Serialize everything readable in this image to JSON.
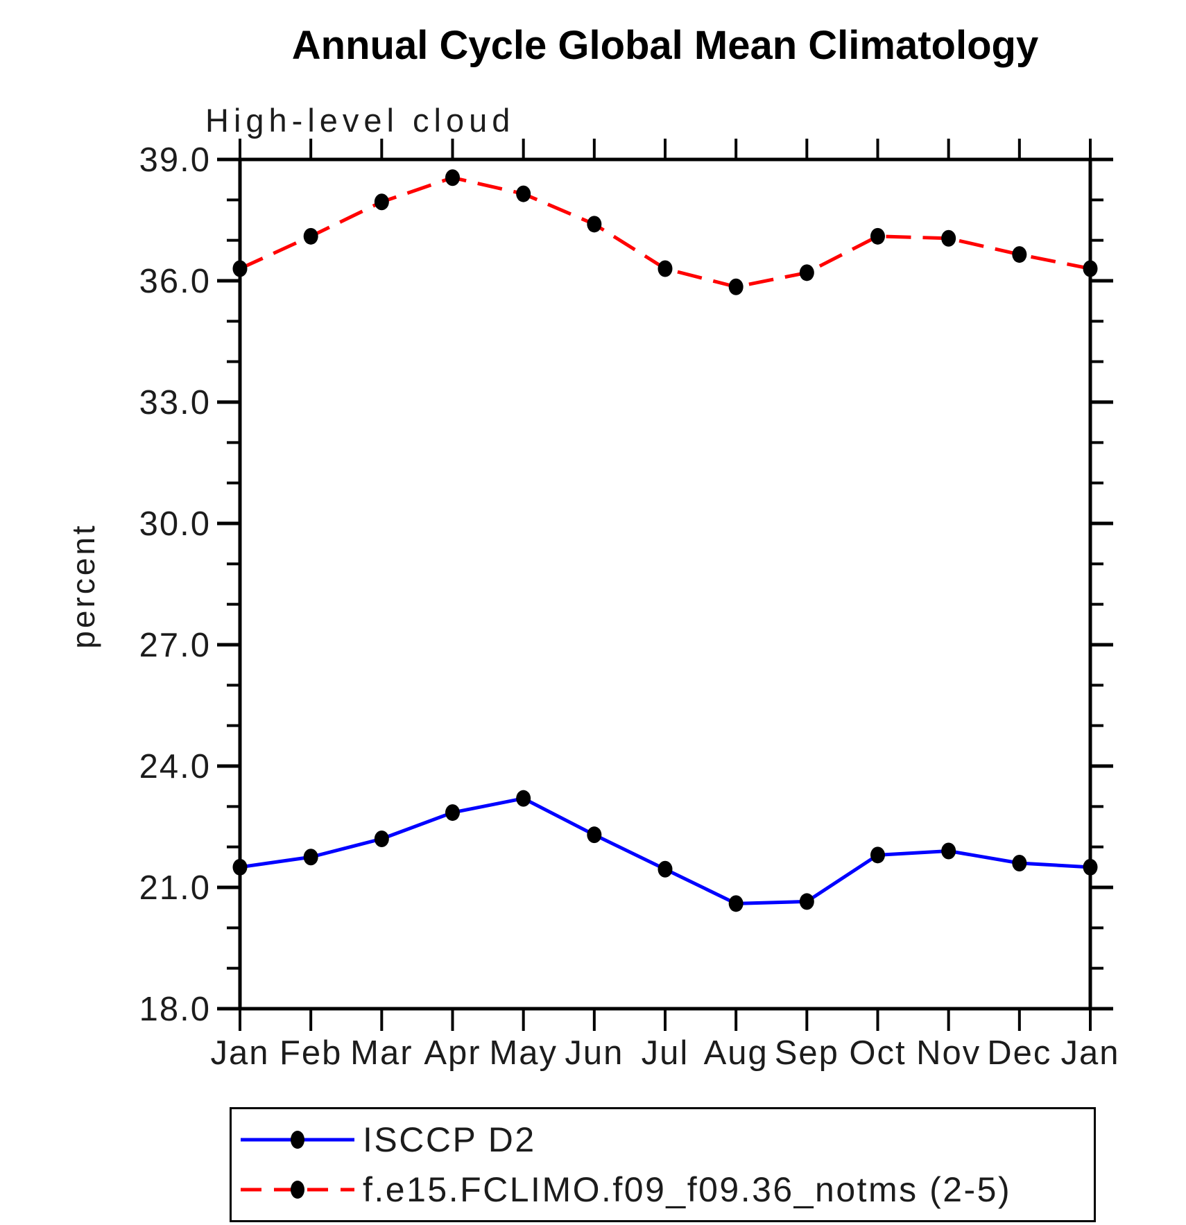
{
  "header": {
    "title": "Annual Cycle Global Mean Climatology",
    "subtitle": "High-level cloud"
  },
  "axes": {
    "ylabel": "percent",
    "y_min": 18.0,
    "y_max": 39.0,
    "y_major_step": 3.0,
    "y_minor_step": 1.0,
    "y_tick_labels": [
      "18.0",
      "21.0",
      "24.0",
      "27.0",
      "30.0",
      "33.0",
      "36.0",
      "39.0"
    ],
    "x_tick_labels": [
      "Jan",
      "Feb",
      "Mar",
      "Apr",
      "May",
      "Jun",
      "Jul",
      "Aug",
      "Sep",
      "Oct",
      "Nov",
      "Dec",
      "Jan"
    ]
  },
  "chart_data": {
    "type": "line",
    "title": "Annual Cycle Global Mean Climatology",
    "subtitle": "High-level cloud",
    "xlabel": "",
    "ylabel": "percent",
    "ylim": [
      18.0,
      39.0
    ],
    "grid": false,
    "legend_position": "bottom-box",
    "categories": [
      "Jan",
      "Feb",
      "Mar",
      "Apr",
      "May",
      "Jun",
      "Jul",
      "Aug",
      "Sep",
      "Oct",
      "Nov",
      "Dec",
      "Jan"
    ],
    "series": [
      {
        "name": "ISCCP D2",
        "color": "#0000ff",
        "line_style": "solid",
        "marker": "filled-circle",
        "marker_color": "#000000",
        "values": [
          21.5,
          21.75,
          22.2,
          22.85,
          23.2,
          22.3,
          21.45,
          20.6,
          20.65,
          21.8,
          21.9,
          21.6,
          21.5
        ]
      },
      {
        "name": "f.e15.FCLIMO.f09_f09.36_notms (2-5)",
        "color": "#ff0000",
        "line_style": "dashed",
        "marker": "filled-circle",
        "marker_color": "#000000",
        "values": [
          36.3,
          37.1,
          37.95,
          38.55,
          38.15,
          37.4,
          36.3,
          35.85,
          36.2,
          37.1,
          37.05,
          36.65,
          36.3
        ]
      }
    ]
  },
  "legend": {
    "entries": [
      {
        "label": "ISCCP D2"
      },
      {
        "label": "f.e15.FCLIMO.f09_f09.36_notms (2-5)"
      }
    ]
  }
}
